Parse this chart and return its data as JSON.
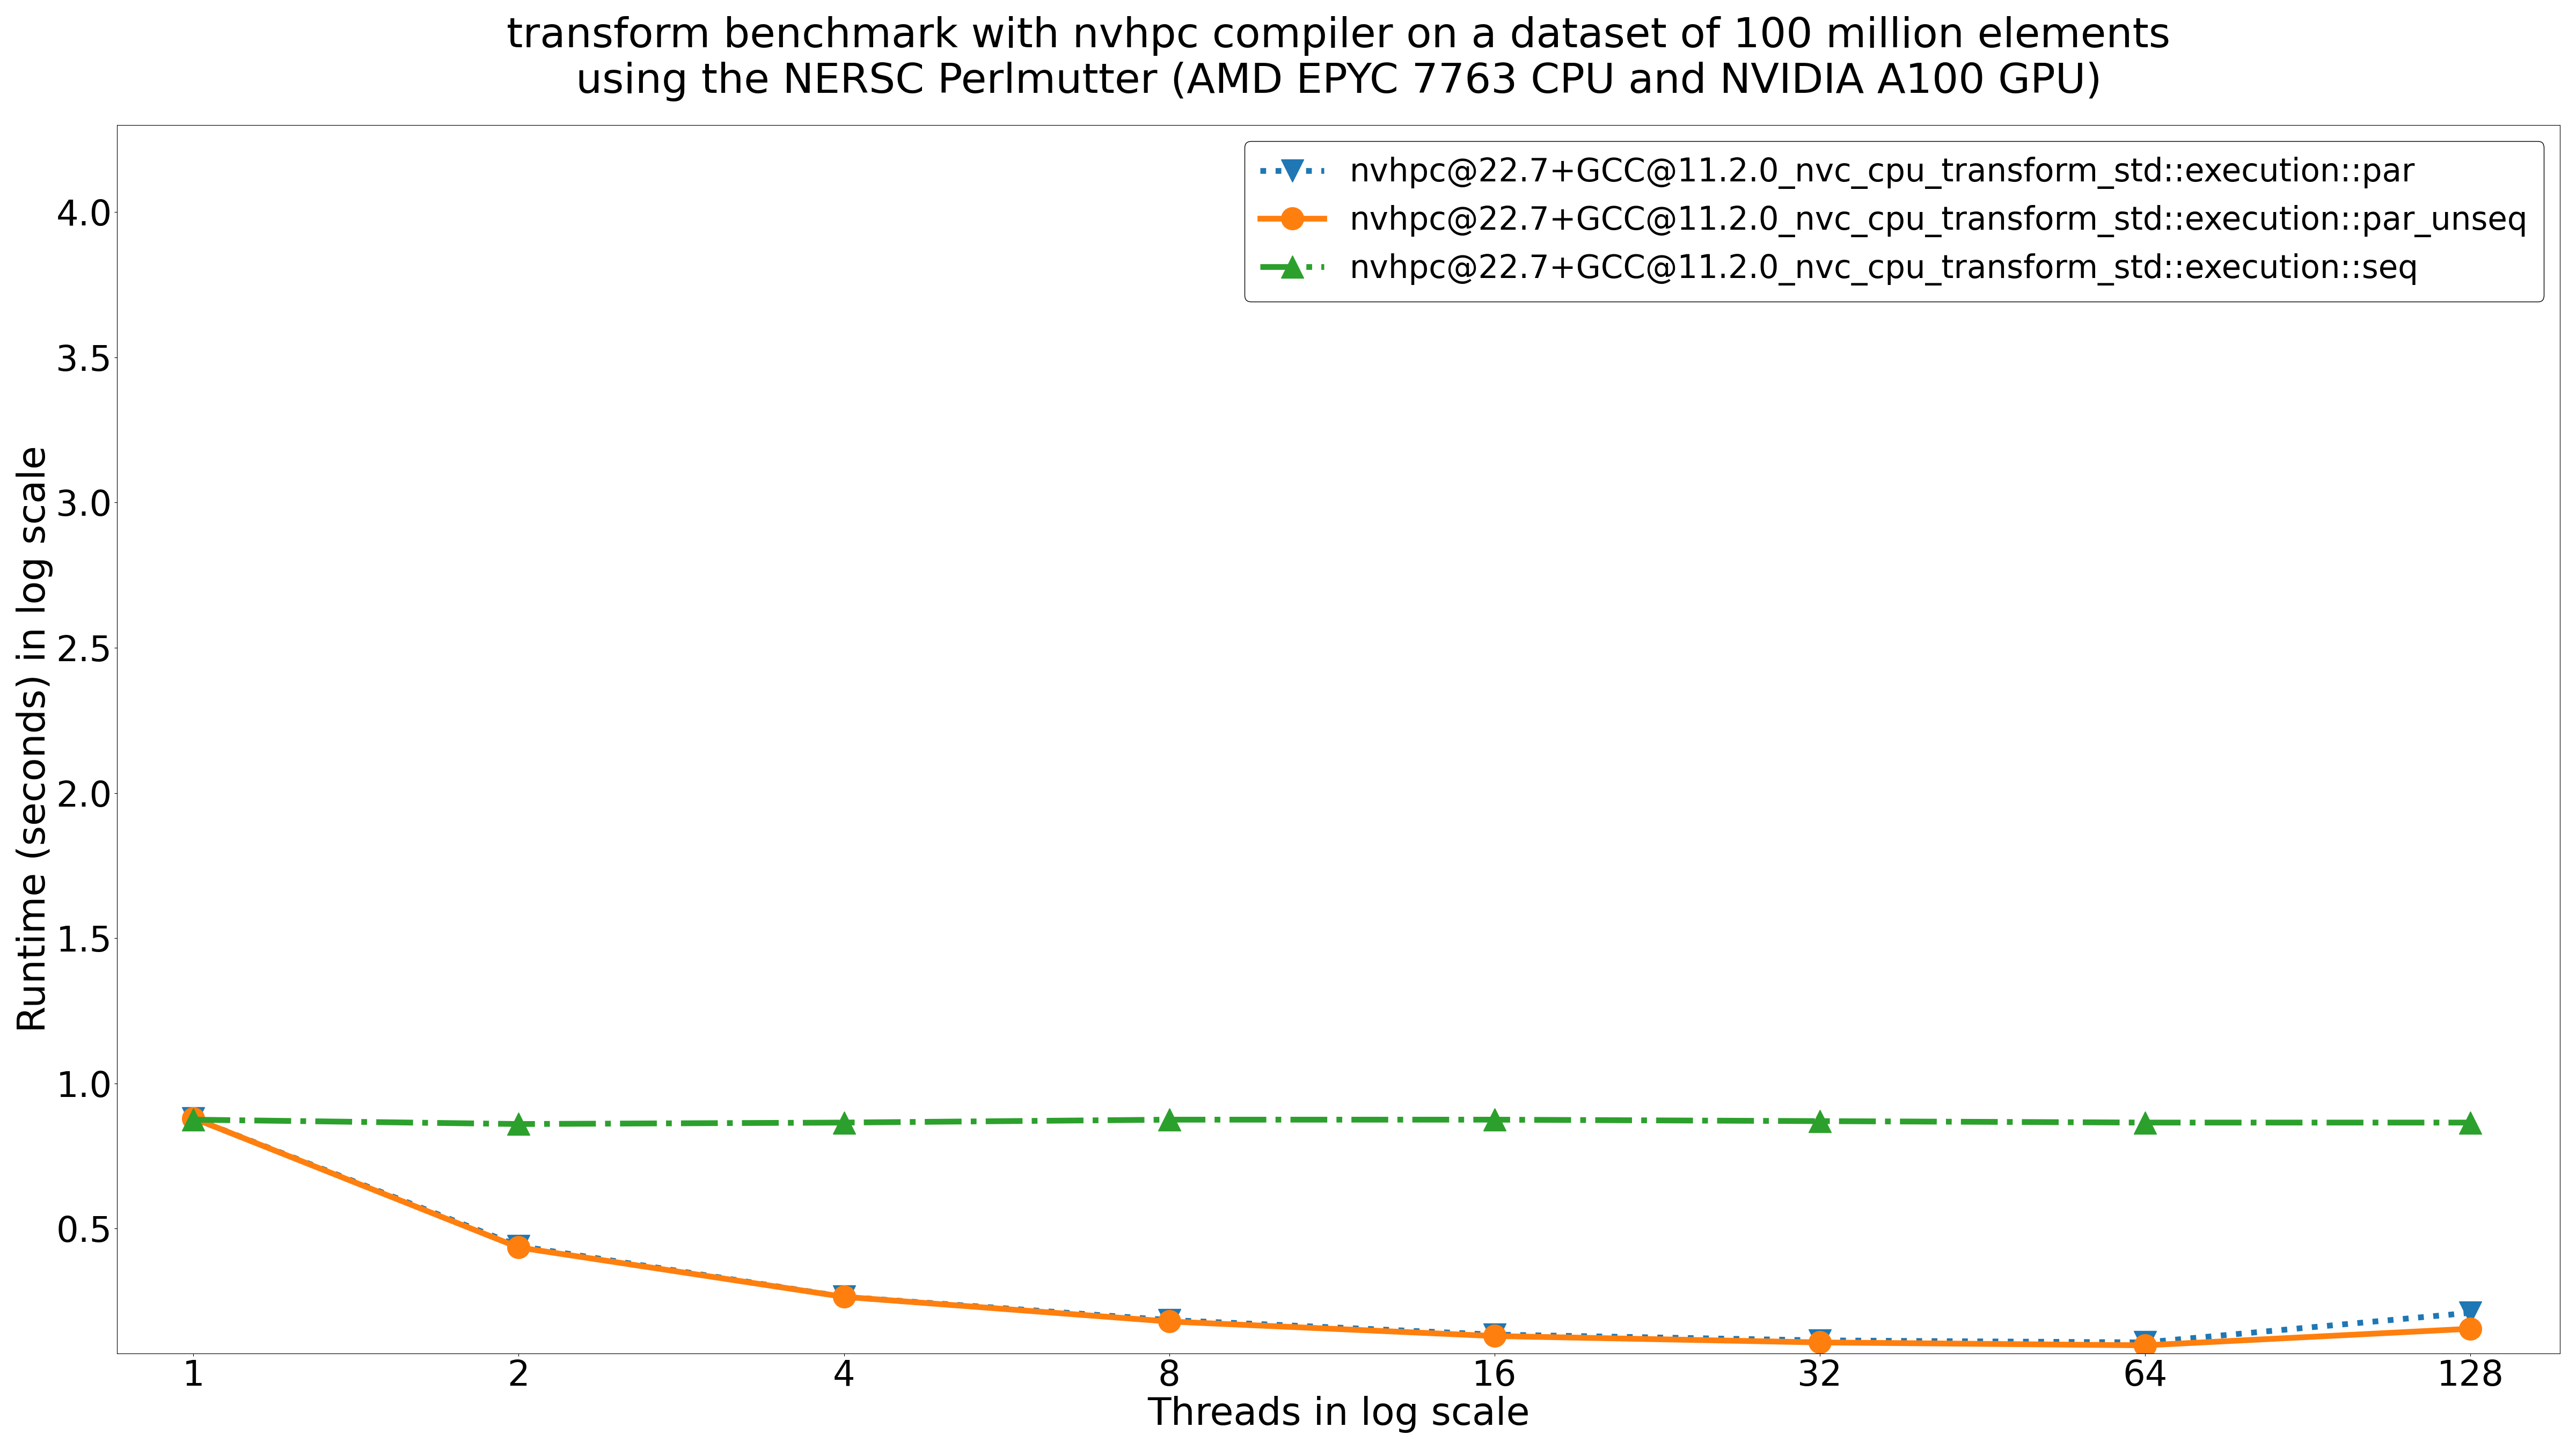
{
  "title_line1": "transform benchmark with nvhpc compiler on a dataset of 100 million elements",
  "title_line2": "using the NERSC Perlmutter (AMD EPYC 7763 CPU and NVIDIA A100 GPU)",
  "xlabel": "Threads in log scale",
  "ylabel": "Runtime (seconds) in log scale",
  "threads": [
    1,
    2,
    4,
    8,
    16,
    32,
    64,
    128
  ],
  "series": [
    {
      "label": "nvhpc@22.7+GCC@11.2.0_nvc_cpu_transform_std::execution::par",
      "color": "#1f77b4",
      "linestyle": "dotted",
      "marker": "v",
      "markersize": 7,
      "values": [
        0.88,
        0.44,
        0.265,
        0.185,
        0.135,
        0.115,
        0.108,
        0.21
      ]
    },
    {
      "label": "nvhpc@22.7+GCC@11.2.0_nvc_cpu_transform_std::execution::par_unseq",
      "color": "#ff7f0e",
      "linestyle": "solid",
      "marker": "o",
      "markersize": 7,
      "values": [
        0.88,
        0.435,
        0.265,
        0.18,
        0.13,
        0.108,
        0.098,
        0.155
      ]
    },
    {
      "label": "nvhpc@22.7+GCC@11.2.0_nvc_cpu_transform_std::execution::seq",
      "color": "#2ca02c",
      "linestyle": "dashdot",
      "marker": "^",
      "markersize": 7,
      "values": [
        0.875,
        0.86,
        0.865,
        0.875,
        0.875,
        0.87,
        0.865,
        0.865
      ]
    }
  ],
  "xtick_labels": [
    "1",
    "2",
    "4",
    "8",
    "16",
    "32",
    "64",
    "128"
  ],
  "yticks_shown": [
    0.5,
    1.0,
    1.5,
    2.0,
    2.5,
    3.0,
    3.5,
    4.0
  ],
  "ylim": [
    0.07,
    4.3
  ],
  "background_color": "#ffffff",
  "title_fontsize": 13,
  "label_fontsize": 12,
  "tick_fontsize": 11,
  "legend_fontsize": 10,
  "linewidth": 1.8
}
